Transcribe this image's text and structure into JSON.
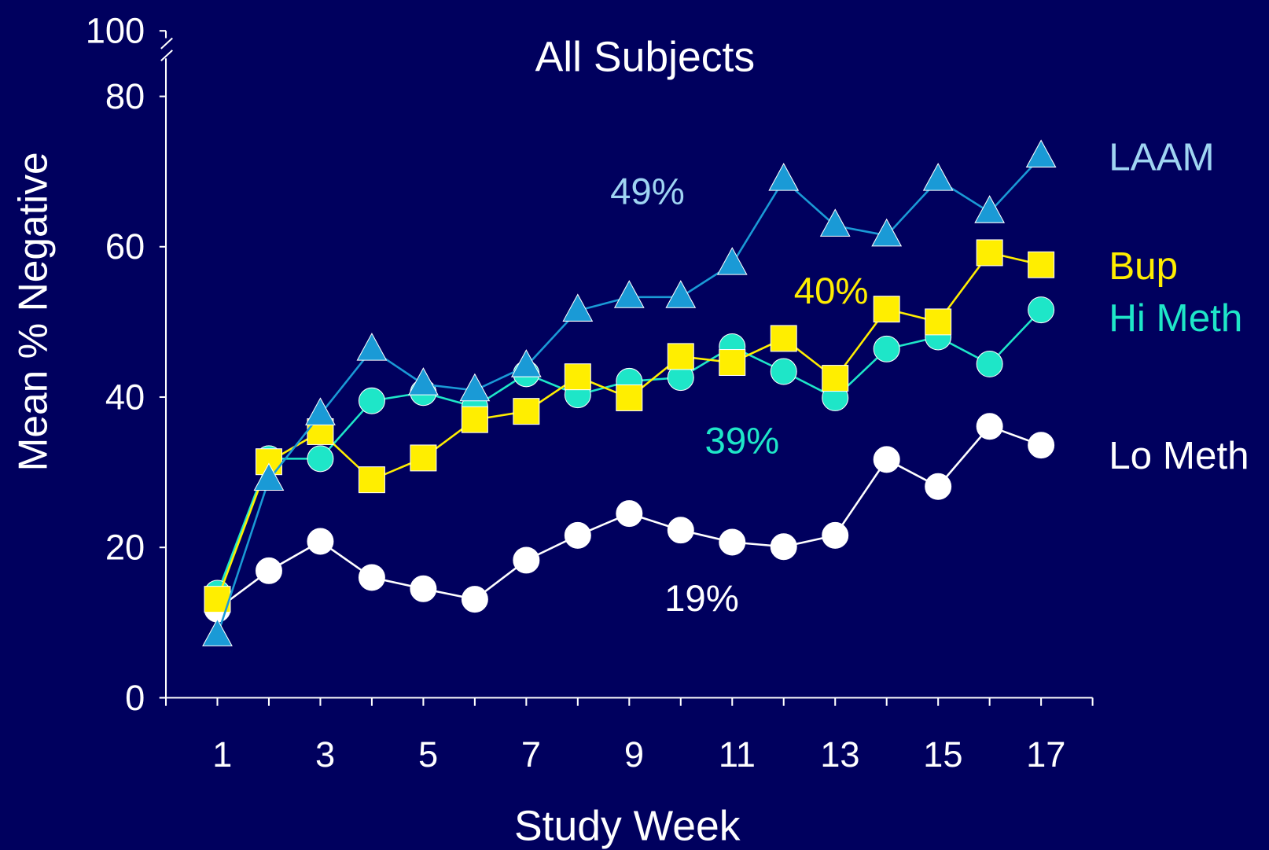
{
  "chart_data": {
    "type": "line",
    "title": "All Subjects",
    "x_label": "Study Week",
    "y_label": "Mean % Negative",
    "x": [
      1,
      2,
      3,
      4,
      5,
      6,
      7,
      8,
      9,
      10,
      11,
      12,
      13,
      14,
      15,
      16,
      17
    ],
    "xlim": [
      0,
      18
    ],
    "xticks": [
      1,
      3,
      5,
      7,
      9,
      11,
      13,
      15,
      17
    ],
    "xminorticks": [
      0,
      1,
      2,
      3,
      4,
      5,
      6,
      7,
      8,
      9,
      10,
      11,
      12,
      13,
      14,
      15,
      16,
      17,
      18
    ],
    "ylim": [
      0,
      80
    ],
    "yticks": [
      0,
      20,
      40,
      60,
      80,
      100
    ],
    "axis_break": true,
    "series": [
      {
        "name": "LAAM",
        "color": "#1a9ad6",
        "label_color": "#9fd4f2",
        "marker": "triangle",
        "values": [
          8.3,
          29,
          37.7,
          46.3,
          41.7,
          40.9,
          44.1,
          51.5,
          53.3,
          53.3,
          57.7,
          68.9,
          62.8,
          61.5,
          68.9,
          64.6,
          72
        ]
      },
      {
        "name": "Bup",
        "color": "#ffee00",
        "label_color": "#ffee00",
        "marker": "square",
        "values": [
          13.1,
          31.4,
          35.4,
          29,
          31.9,
          37,
          38.1,
          42.7,
          39.9,
          45.4,
          44.6,
          47.8,
          42.5,
          51.7,
          50,
          59.2,
          57.6
        ]
      },
      {
        "name": "Hi Meth",
        "color": "#1ee6c8",
        "label_color": "#1ee6c8",
        "marker": "circle",
        "values": [
          13.9,
          31.8,
          31.8,
          39.5,
          40.6,
          38.7,
          43.1,
          40.3,
          42.1,
          42.6,
          46.7,
          43.4,
          39.9,
          46.4,
          48,
          44.4,
          51.6
        ]
      },
      {
        "name": "Lo Meth",
        "color": "#ffffff",
        "label_color": "#ffffff",
        "marker": "circle",
        "values": [
          11.8,
          16.9,
          20.8,
          16,
          14.5,
          13.1,
          18.3,
          21.6,
          24.5,
          22.3,
          20.7,
          20.1,
          21.6,
          31.7,
          28.1,
          36.1,
          33.6
        ]
      }
    ],
    "annotations": [
      {
        "text": "49%",
        "color": "#9fd4f2"
      },
      {
        "text": "40%",
        "color": "#ffee00"
      },
      {
        "text": "39%",
        "color": "#1ee6c8"
      },
      {
        "text": "19%",
        "color": "#ffffff"
      }
    ]
  }
}
